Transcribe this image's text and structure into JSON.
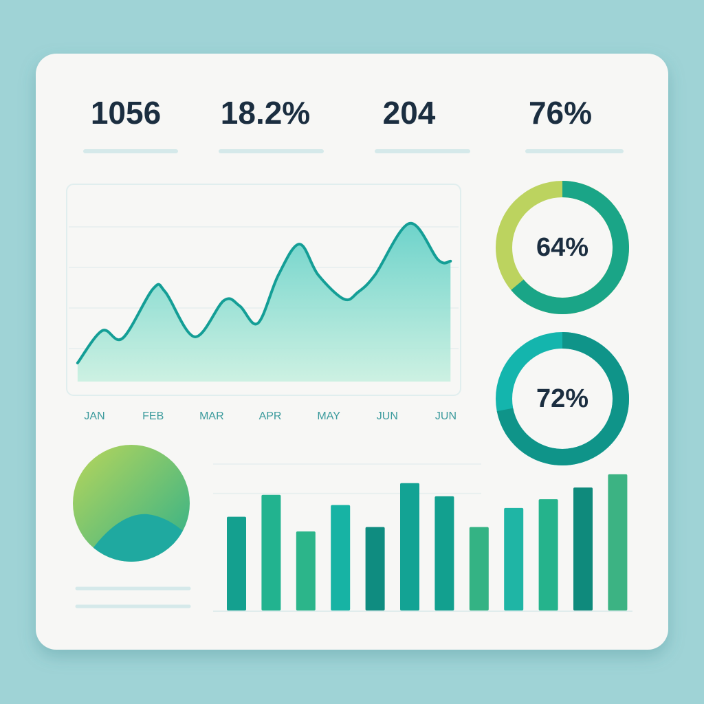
{
  "kpis": [
    "1056",
    "18.2%",
    "204",
    "76%"
  ],
  "chart_data": [
    {
      "type": "line",
      "color": "#149e96",
      "x": [
        -0.29,
        0.13,
        0.48,
        1.0,
        1.21,
        1.71,
        2.21,
        2.48,
        2.79,
        3.14,
        3.5,
        3.82,
        4.26,
        4.5,
        4.79,
        5.38,
        5.87,
        6.08
      ],
      "values": [
        12.9,
        28.8,
        25.1,
        49.5,
        47.8,
        25.8,
        43.7,
        41.0,
        32.5,
        56.3,
        71.5,
        56.3,
        44.4,
        47.8,
        56.3,
        81.7,
        63.7,
        63.1
      ],
      "xlim": [
        -0.3,
        6.1
      ],
      "xticks": [
        {
          "value": 0,
          "label": "JAN"
        },
        {
          "value": 1,
          "label": "FEB"
        },
        {
          "value": 2,
          "label": "MAR"
        },
        {
          "value": 3,
          "label": "APR"
        },
        {
          "value": 4,
          "label": "MAY"
        },
        {
          "value": 5,
          "label": "JUN"
        },
        {
          "value": 6,
          "label": "JUN"
        }
      ],
      "ylim": [
        0,
        100
      ],
      "yticks": [
        20,
        40,
        60,
        80
      ],
      "grid": true
    },
    {
      "type": "donut",
      "values": [
        64
      ],
      "value_labels": [
        "64%"
      ],
      "color": "#1aa587",
      "track_color": "#bcd35f"
    },
    {
      "type": "donut",
      "values": [
        72
      ],
      "value_labels": [
        "72%"
      ],
      "color": "#0f9489",
      "track_color": "#14b5ad"
    },
    {
      "type": "bar",
      "values": [
        64,
        79,
        54,
        72,
        57,
        87,
        78,
        57,
        70,
        76,
        84,
        93
      ],
      "colors": [
        "#14a08f",
        "#22b38f",
        "#2cb58a",
        "#17b3a4",
        "#0f8c80",
        "#13a394",
        "#12a08f",
        "#34b384",
        "#1fb5a5",
        "#25b38c",
        "#0f8a7c",
        "#3cb383"
      ],
      "ylim": [
        0,
        100
      ],
      "yticks": [
        80,
        100
      ],
      "grid": true
    }
  ]
}
